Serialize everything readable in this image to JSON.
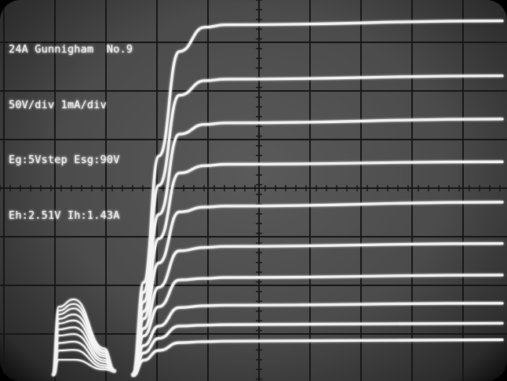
{
  "readout": {
    "line1": "24A Gunnigham  No.9",
    "line2": "50V/div 1mA/div",
    "line3": "Eg:5Vstep Esg:90V",
    "line4": "Eh:2.51V Ih:1.43A"
  },
  "colors": {
    "screen": "#4e4e4e",
    "graticule": "#161616",
    "trace": "#f4f4f4"
  },
  "chart_data": {
    "type": "line",
    "x_units_per_div": 50,
    "y_units_per_div": 1,
    "x_unit": "V",
    "y_unit": "mA",
    "xlim": [
      0,
      475
    ],
    "ylim": [
      0,
      7.4
    ],
    "grid": true,
    "series": [
      {
        "x": [
          0,
          10,
          25,
          45,
          70,
          90,
          470
        ],
        "y": [
          0,
          1.9,
          4.5,
          6.65,
          7.15,
          7.2,
          7.28
        ]
      },
      {
        "x": [
          0,
          10,
          25,
          45,
          70,
          90,
          490
        ],
        "y": [
          0,
          1.7,
          3.9,
          5.75,
          6.05,
          6.08,
          6.15
        ]
      },
      {
        "x": [
          0,
          10,
          25,
          45,
          70,
          90,
          500
        ],
        "y": [
          0,
          1.5,
          3.3,
          4.95,
          5.15,
          5.18,
          5.26
        ]
      },
      {
        "x": [
          0,
          10,
          25,
          45,
          70,
          90,
          510
        ],
        "y": [
          0,
          1.3,
          2.8,
          4.15,
          4.3,
          4.33,
          4.38
        ]
      },
      {
        "x": [
          0,
          10,
          25,
          45,
          70,
          90,
          515
        ],
        "y": [
          0,
          1.15,
          2.3,
          3.35,
          3.45,
          3.47,
          3.55
        ]
      },
      {
        "x": [
          0,
          10,
          25,
          45,
          70,
          90,
          515
        ],
        "y": [
          0,
          0.95,
          1.8,
          2.55,
          2.62,
          2.64,
          2.7
        ]
      },
      {
        "x": [
          0,
          10,
          25,
          45,
          70,
          90,
          515
        ],
        "y": [
          0,
          0.8,
          1.4,
          1.95,
          1.98,
          2.0,
          2.05
        ]
      },
      {
        "x": [
          0,
          10,
          25,
          45,
          70,
          90,
          515
        ],
        "y": [
          0,
          0.6,
          1.0,
          1.38,
          1.42,
          1.43,
          1.47
        ]
      },
      {
        "x": [
          0,
          10,
          25,
          45,
          70,
          90,
          515
        ],
        "y": [
          0,
          0.45,
          0.75,
          1.0,
          1.02,
          1.03,
          1.06
        ]
      },
      {
        "x": [
          0,
          10,
          25,
          45,
          70,
          90,
          515
        ],
        "y": [
          0,
          0.3,
          0.5,
          0.66,
          0.68,
          0.69,
          0.72
        ]
      }
    ],
    "screen_grid_series": [
      {
        "x": [
          0,
          5,
          20,
          50,
          60
        ],
        "y": [
          0,
          0.9,
          1.0,
          0.35,
          0.05
        ]
      },
      {
        "x": [
          0,
          5,
          20,
          50,
          60
        ],
        "y": [
          0,
          0.85,
          0.94,
          0.32,
          0.05
        ]
      },
      {
        "x": [
          0,
          5,
          20,
          50,
          60
        ],
        "y": [
          0,
          0.8,
          0.88,
          0.3,
          0.05
        ]
      },
      {
        "x": [
          0,
          5,
          20,
          50,
          60
        ],
        "y": [
          0,
          0.74,
          0.8,
          0.27,
          0.05
        ]
      },
      {
        "x": [
          0,
          5,
          20,
          50,
          60
        ],
        "y": [
          0,
          0.68,
          0.72,
          0.24,
          0.05
        ]
      },
      {
        "x": [
          0,
          5,
          20,
          50,
          60
        ],
        "y": [
          0,
          0.6,
          0.63,
          0.2,
          0.05
        ]
      },
      {
        "x": [
          0,
          5,
          20,
          50,
          60
        ],
        "y": [
          0,
          0.52,
          0.54,
          0.17,
          0.05
        ]
      },
      {
        "x": [
          0,
          5,
          20,
          50,
          60
        ],
        "y": [
          0,
          0.42,
          0.44,
          0.13,
          0.05
        ]
      },
      {
        "x": [
          0,
          5,
          20,
          50,
          60
        ],
        "y": [
          0,
          0.32,
          0.33,
          0.1,
          0.05
        ]
      },
      {
        "x": [
          0,
          5,
          20,
          50,
          60
        ],
        "y": [
          0,
          0.2,
          0.2,
          0.07,
          0.05
        ]
      }
    ]
  }
}
